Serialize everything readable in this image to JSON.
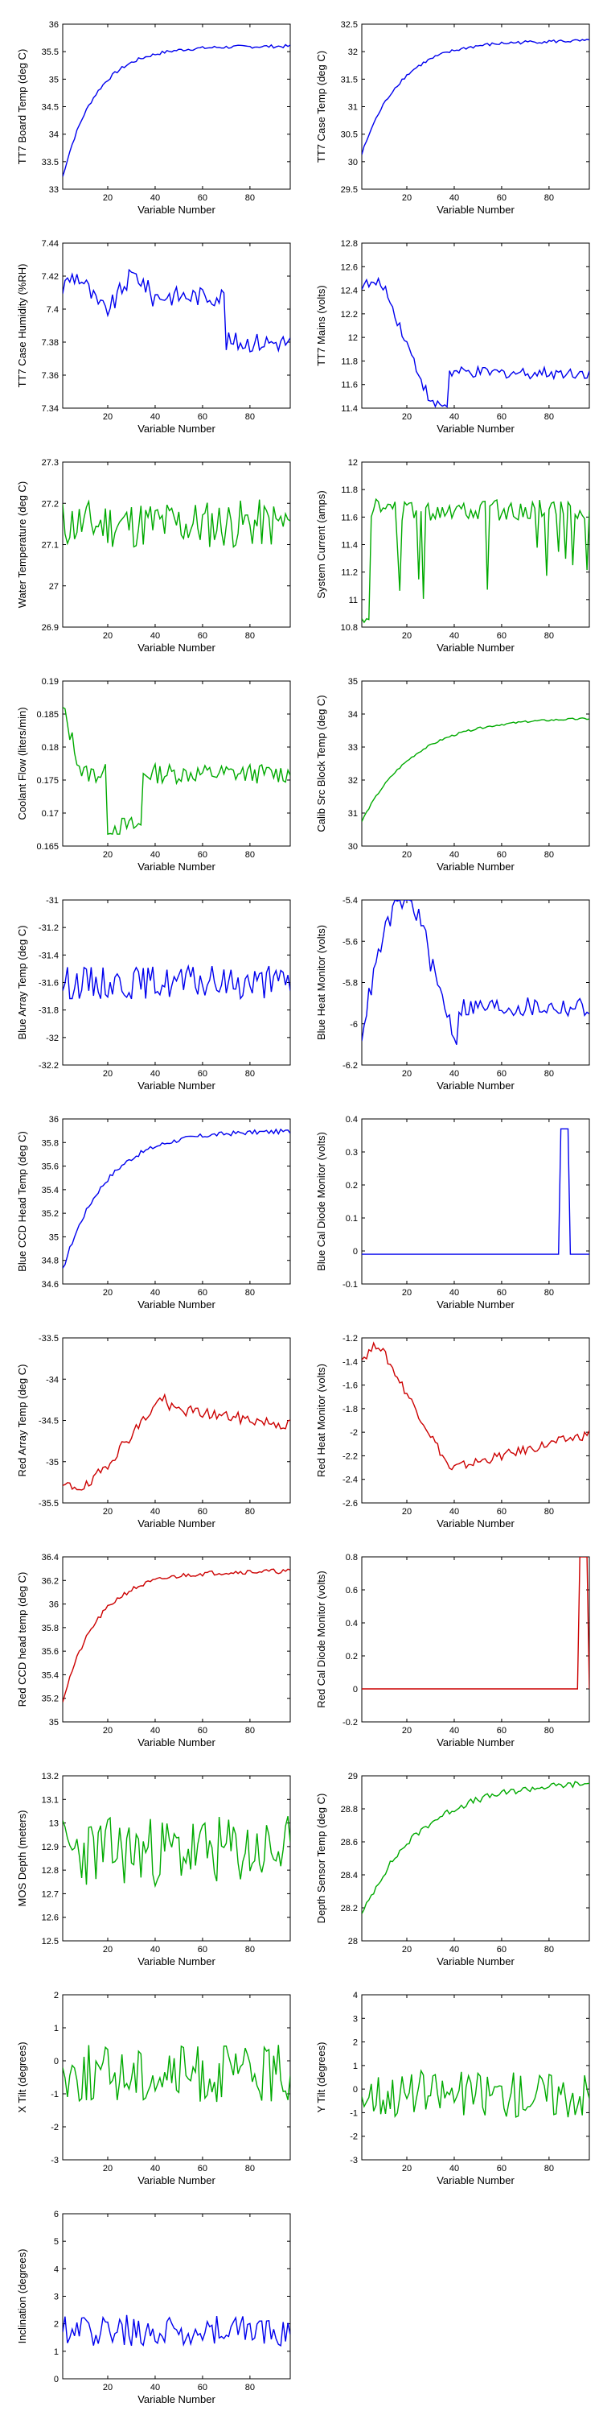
{
  "chart_data": [
    {
      "type": "line",
      "ylabel": "TT7 Board Temp (deg C)",
      "xlabel": "Variable Number",
      "xlim": [
        1,
        97
      ],
      "ylim": [
        33,
        36
      ],
      "xticks": [
        20,
        40,
        60,
        80
      ],
      "yticks": [
        33,
        33.5,
        34,
        34.5,
        35,
        35.5,
        36
      ],
      "ytick_labels": [
        "33",
        "33.5",
        "34",
        "34.5",
        "35",
        "35.5",
        "36"
      ],
      "color": "#0000ee",
      "style": "temp_rise",
      "base": 33.05,
      "amp": 2.55,
      "tau": 14,
      "noise": 0.03
    },
    {
      "type": "line",
      "ylabel": "TT7 Case Temp (deg C)",
      "xlabel": "Variable Number",
      "xlim": [
        1,
        97
      ],
      "ylim": [
        29.5,
        32.5
      ],
      "xticks": [
        20,
        40,
        60,
        80
      ],
      "yticks": [
        29.5,
        30,
        30.5,
        31,
        31.5,
        32,
        32.5
      ],
      "ytick_labels": [
        "29.5",
        "30",
        "30.5",
        "31",
        "31.5",
        "32",
        "32.5"
      ],
      "color": "#0000ee",
      "style": "temp_rise",
      "base": 30.0,
      "amp": 2.2,
      "tau": 16,
      "noise": 0.03
    },
    {
      "type": "line",
      "ylabel": "TT7 Case Humidity (%RH)",
      "xlabel": "Variable Number",
      "xlim": [
        1,
        97
      ],
      "ylim": [
        7.34,
        7.44
      ],
      "xticks": [
        20,
        40,
        60,
        80
      ],
      "yticks": [
        7.34,
        7.36,
        7.38,
        7.4,
        7.42,
        7.44
      ],
      "ytick_labels": [
        "7.34",
        "7.36",
        "7.38",
        "7.4",
        "7.42",
        "7.44"
      ],
      "color": "#0000ee",
      "style": "humidity",
      "base": 7.41,
      "amp": 0.02,
      "tau": 10,
      "noise": 0.006
    },
    {
      "type": "line",
      "ylabel": "TT7 Mains  (volts)",
      "xlabel": "Variable Number",
      "xlim": [
        1,
        97
      ],
      "ylim": [
        11.4,
        12.8
      ],
      "xticks": [
        20,
        40,
        60,
        80
      ],
      "yticks": [
        11.4,
        11.6,
        11.8,
        12,
        12.2,
        12.4,
        12.6,
        12.8
      ],
      "ytick_labels": [
        "11.4",
        "11.6",
        "11.8",
        "12",
        "12.2",
        "12.4",
        "12.6",
        "12.8"
      ],
      "color": "#0000ee",
      "style": "mains",
      "base": 11.7,
      "amp": 0.7,
      "tau": 12,
      "noise": 0.05
    },
    {
      "type": "line",
      "ylabel": "Water Temperature (deg C)",
      "xlabel": "Variable Number",
      "xlim": [
        1,
        97
      ],
      "ylim": [
        26.9,
        27.3
      ],
      "xticks": [
        20,
        40,
        60,
        80
      ],
      "yticks": [
        26.9,
        27,
        27.1,
        27.2,
        27.3
      ],
      "ytick_labels": [
        "26.9",
        "27",
        "27.1",
        "27.2",
        "27.3"
      ],
      "color": "#00aa00",
      "style": "noise",
      "base": 27.15,
      "amp": 0.0,
      "tau": 1,
      "noise": 0.06
    },
    {
      "type": "line",
      "ylabel": "System Current (amps)",
      "xlabel": "Variable Number",
      "xlim": [
        1,
        97
      ],
      "ylim": [
        10.8,
        12
      ],
      "xticks": [
        20,
        40,
        60,
        80
      ],
      "yticks": [
        10.8,
        11,
        11.2,
        11.4,
        11.6,
        11.8,
        12
      ],
      "ytick_labels": [
        "10.8",
        "11",
        "11.2",
        "11.4",
        "11.6",
        "11.8",
        "12"
      ],
      "color": "#00aa00",
      "style": "current",
      "base": 11.65,
      "amp": 0.0,
      "tau": 1,
      "noise": 0.08
    },
    {
      "type": "line",
      "ylabel": "Coolant Flow (liters/min)",
      "xlabel": "Variable Number",
      "xlim": [
        1,
        97
      ],
      "ylim": [
        0.165,
        0.19
      ],
      "xticks": [
        20,
        40,
        60,
        80
      ],
      "yticks": [
        0.165,
        0.17,
        0.175,
        0.18,
        0.185,
        0.19
      ],
      "ytick_labels": [
        "0.165",
        "0.17",
        "0.175",
        "0.18",
        "0.185",
        "0.19"
      ],
      "color": "#00aa00",
      "style": "coolant",
      "base": 0.176,
      "amp": 0.012,
      "tau": 6,
      "noise": 0.0015
    },
    {
      "type": "line",
      "ylabel": "Calib Src Block Temp (deg C)",
      "xlabel": "Variable Number",
      "xlim": [
        1,
        97
      ],
      "ylim": [
        30,
        35
      ],
      "xticks": [
        20,
        40,
        60,
        80
      ],
      "yticks": [
        30,
        31,
        32,
        33,
        34,
        35
      ],
      "ytick_labels": [
        "30",
        "31",
        "32",
        "33",
        "34",
        "35"
      ],
      "color": "#00aa00",
      "style": "temp_rise",
      "base": 30.6,
      "amp": 3.3,
      "tau": 22,
      "noise": 0.03
    },
    {
      "type": "line",
      "ylabel": "Blue Array Temp (deg C)",
      "xlabel": "Variable Number",
      "xlim": [
        1,
        97
      ],
      "ylim": [
        -32.2,
        -31
      ],
      "xticks": [
        20,
        40,
        60,
        80
      ],
      "yticks": [
        -32.2,
        -32,
        -31.8,
        -31.6,
        -31.4,
        -31.2,
        -31
      ],
      "ytick_labels": [
        "-32.2",
        "-32",
        "-31.8",
        "-31.6",
        "-31.4",
        "-31.2",
        "-31"
      ],
      "color": "#0000ee",
      "style": "noise",
      "base": -31.6,
      "amp": 0.0,
      "tau": 1,
      "noise": 0.12
    },
    {
      "type": "line",
      "ylabel": "Blue Heat Monitor (volts)",
      "xlabel": "Variable Number",
      "xlim": [
        1,
        97
      ],
      "ylim": [
        -6.2,
        -5.4
      ],
      "xticks": [
        20,
        40,
        60,
        80
      ],
      "yticks": [
        -6.2,
        -6,
        -5.8,
        -5.6,
        -5.4
      ],
      "ytick_labels": [
        "-6.2",
        "-6",
        "-5.8",
        "-5.6",
        "-5.4"
      ],
      "color": "#0000ee",
      "style": "heatmon",
      "base": -5.9,
      "amp": 0.45,
      "tau": 8,
      "noise": 0.05
    },
    {
      "type": "line",
      "ylabel": "Blue CCD Head Temp (deg C)",
      "xlabel": "Variable Number",
      "xlim": [
        1,
        97
      ],
      "ylim": [
        34.6,
        36
      ],
      "xticks": [
        20,
        40,
        60,
        80
      ],
      "yticks": [
        34.6,
        34.8,
        35,
        35.2,
        35.4,
        35.6,
        35.8,
        36
      ],
      "ytick_labels": [
        "34.6",
        "34.8",
        "35",
        "35.2",
        "35.4",
        "35.6",
        "35.8",
        "36"
      ],
      "color": "#0000ee",
      "style": "temp_rise",
      "base": 34.65,
      "amp": 1.25,
      "tau": 18,
      "noise": 0.02
    },
    {
      "type": "line",
      "ylabel": "Blue Cal Diode Monitor (volts)",
      "xlabel": "Variable Number",
      "xlim": [
        1,
        97
      ],
      "ylim": [
        -0.1,
        0.4
      ],
      "xticks": [
        20,
        40,
        60,
        80
      ],
      "yticks": [
        -0.1,
        0,
        0.1,
        0.2,
        0.3,
        0.4
      ],
      "ytick_labels": [
        "-0.1",
        "0",
        "0.1",
        "0.2",
        "0.3",
        "0.4"
      ],
      "color": "#0000ee",
      "style": "spike",
      "base": -0.01,
      "amp": 0.38,
      "tau": 85,
      "noise": 0.0
    },
    {
      "type": "line",
      "ylabel": "Red Array Temp (deg C)",
      "xlabel": "Variable Number",
      "xlim": [
        1,
        97
      ],
      "ylim": [
        -35.5,
        -33.5
      ],
      "xticks": [
        20,
        40,
        60,
        80
      ],
      "yticks": [
        -35.5,
        -35,
        -34.5,
        -34,
        -33.5
      ],
      "ytick_labels": [
        "-35.5",
        "-35",
        "-34.5",
        "-34",
        "-33.5"
      ],
      "color": "#cc0000",
      "style": "redarray",
      "base": -34.4,
      "amp": 0.9,
      "tau": 10,
      "noise": 0.07
    },
    {
      "type": "line",
      "ylabel": "Red Heat Monitor (volts)",
      "xlabel": "Variable Number",
      "xlim": [
        1,
        97
      ],
      "ylim": [
        -2.6,
        -1.2
      ],
      "xticks": [
        20,
        40,
        60,
        80
      ],
      "yticks": [
        -2.6,
        -2.4,
        -2.2,
        -2,
        -1.8,
        -1.6,
        -1.4,
        -1.2
      ],
      "ytick_labels": [
        "-2.6",
        "-2.4",
        "-2.2",
        "-2",
        "-1.8",
        "-1.6",
        "-1.4",
        "-1.2"
      ],
      "color": "#cc0000",
      "style": "redheat",
      "base": -2.05,
      "amp": 0.85,
      "tau": 10,
      "noise": 0.04
    },
    {
      "type": "line",
      "ylabel": "Red CCD head temp (deg C)",
      "xlabel": "Variable Number",
      "xlim": [
        1,
        97
      ],
      "ylim": [
        35,
        36.4
      ],
      "xticks": [
        20,
        40,
        60,
        80
      ],
      "yticks": [
        35,
        35.2,
        35.4,
        35.6,
        35.8,
        36,
        36.2,
        36.4
      ],
      "ytick_labels": [
        "35",
        "35.2",
        "35.4",
        "35.6",
        "35.8",
        "36",
        "36.2",
        "36.4"
      ],
      "color": "#cc0000",
      "style": "temp_rise",
      "base": 35.1,
      "amp": 1.18,
      "tau": 15,
      "noise": 0.02
    },
    {
      "type": "line",
      "ylabel": "Red Cal Diode Monitor (volts)",
      "xlabel": "Variable Number",
      "xlim": [
        1,
        97
      ],
      "ylim": [
        -0.2,
        0.8
      ],
      "xticks": [
        20,
        40,
        60,
        80
      ],
      "yticks": [
        -0.2,
        0,
        0.2,
        0.4,
        0.6,
        0.8
      ],
      "ytick_labels": [
        "-0.2",
        "0",
        "0.2",
        "0.4",
        "0.6",
        "0.8"
      ],
      "color": "#cc0000",
      "style": "spike",
      "base": 0.0,
      "amp": 0.8,
      "tau": 93,
      "noise": 0.0
    },
    {
      "type": "line",
      "ylabel": "MOS Depth  (meters)",
      "xlabel": "Variable Number",
      "xlim": [
        1,
        97
      ],
      "ylim": [
        12.5,
        13.2
      ],
      "xticks": [
        20,
        40,
        60,
        80
      ],
      "yticks": [
        12.5,
        12.6,
        12.7,
        12.8,
        12.9,
        13,
        13.1,
        13.2
      ],
      "ytick_labels": [
        "12.5",
        "12.6",
        "12.7",
        "12.8",
        "12.9",
        "13",
        "13.1",
        "13.2"
      ],
      "color": "#00aa00",
      "style": "noise",
      "base": 12.88,
      "amp": 0.0,
      "tau": 1,
      "noise": 0.15
    },
    {
      "type": "line",
      "ylabel": "Depth Sensor Temp (deg C)",
      "xlabel": "Variable Number",
      "xlim": [
        1,
        97
      ],
      "ylim": [
        28,
        29
      ],
      "xticks": [
        20,
        40,
        60,
        80
      ],
      "yticks": [
        28,
        28.2,
        28.4,
        28.6,
        28.8,
        29
      ],
      "ytick_labels": [
        "28",
        "28.2",
        "28.4",
        "28.6",
        "28.8",
        "29"
      ],
      "color": "#00aa00",
      "style": "temp_rise",
      "base": 28.12,
      "amp": 0.85,
      "tau": 25,
      "noise": 0.02
    },
    {
      "type": "line",
      "ylabel": "X Tilt  (degrees)",
      "xlabel": "Variable Number",
      "xlim": [
        1,
        97
      ],
      "ylim": [
        -3,
        2
      ],
      "xticks": [
        20,
        40,
        60,
        80
      ],
      "yticks": [
        -3,
        -2,
        -1,
        0,
        1,
        2
      ],
      "ytick_labels": [
        "-3",
        "-2",
        "-1",
        "0",
        "1",
        "2"
      ],
      "color": "#00aa00",
      "style": "noise",
      "base": -0.4,
      "amp": 0.0,
      "tau": 1,
      "noise": 0.9
    },
    {
      "type": "line",
      "ylabel": "Y Tilt  (degrees)",
      "xlabel": "Variable Number",
      "xlim": [
        1,
        97
      ],
      "ylim": [
        -3,
        4
      ],
      "xticks": [
        20,
        40,
        60,
        80
      ],
      "yticks": [
        -3,
        -2,
        -1,
        0,
        1,
        2,
        3,
        4
      ],
      "ytick_labels": [
        "-3",
        "-2",
        "-1",
        "0",
        "1",
        "2",
        "3",
        "4"
      ],
      "color": "#00aa00",
      "style": "noise",
      "base": -0.2,
      "amp": 0.0,
      "tau": 1,
      "noise": 1.0
    },
    {
      "type": "line",
      "ylabel": "Inclination  (degrees)",
      "xlabel": "Variable Number",
      "xlim": [
        1,
        97
      ],
      "ylim": [
        0,
        6
      ],
      "xticks": [
        20,
        40,
        60,
        80
      ],
      "yticks": [
        0,
        1,
        2,
        3,
        4,
        5,
        6
      ],
      "ytick_labels": [
        "0",
        "1",
        "2",
        "3",
        "4",
        "5",
        "6"
      ],
      "color": "#0000ee",
      "style": "incl",
      "base": 1.5,
      "amp": 0.0,
      "tau": 1,
      "noise": 0.7
    }
  ]
}
